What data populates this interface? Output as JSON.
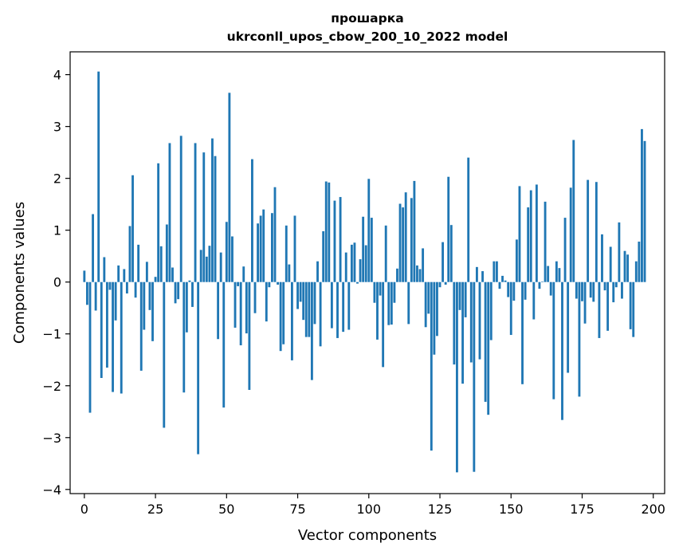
{
  "chart_data": {
    "type": "bar",
    "title_line1": "прошарка",
    "title_line2": "ukrconll_upos_cbow_200_10_2022 model",
    "xlabel": "Vector components",
    "ylabel": "Components values",
    "xlim": [
      -5,
      204
    ],
    "ylim": [
      -4.08,
      4.44
    ],
    "xticks": [
      0,
      25,
      50,
      75,
      100,
      125,
      150,
      175,
      200
    ],
    "yticks": [
      -4,
      -3,
      -2,
      -1,
      0,
      1,
      2,
      3,
      4
    ],
    "xtick_labels": [
      "0",
      "25",
      "50",
      "75",
      "100",
      "125",
      "150",
      "175",
      "200"
    ],
    "ytick_labels": [
      "−4",
      "−3",
      "−2",
      "−1",
      "0",
      "1",
      "2",
      "3",
      "4"
    ],
    "bar_color": "#1f77b4",
    "grid": false,
    "values": [
      0.22,
      -0.44,
      -2.52,
      1.31,
      -0.55,
      4.06,
      -1.85,
      0.48,
      -1.65,
      -0.15,
      -2.12,
      -0.74,
      0.32,
      -2.15,
      0.25,
      -0.22,
      1.08,
      2.06,
      -0.3,
      0.72,
      -1.71,
      -0.92,
      0.39,
      -0.54,
      -1.14,
      0.1,
      2.29,
      0.69,
      -2.81,
      1.11,
      2.68,
      0.28,
      -0.41,
      -0.33,
      2.82,
      -2.13,
      -0.97,
      0.03,
      -0.48,
      2.68,
      -3.32,
      0.62,
      2.5,
      0.49,
      0.7,
      2.77,
      2.43,
      -1.1,
      0.57,
      -2.42,
      1.16,
      3.65,
      0.88,
      -0.88,
      -0.08,
      -1.22,
      0.3,
      -0.99,
      -2.08,
      2.37,
      -0.6,
      1.13,
      1.28,
      1.4,
      -0.76,
      -0.1,
      1.33,
      1.83,
      -0.05,
      -1.33,
      -1.2,
      1.09,
      0.34,
      -1.51,
      1.28,
      -0.52,
      -0.38,
      -0.73,
      -1.06,
      -1.06,
      -1.89,
      -0.81,
      0.4,
      -1.24,
      0.98,
      1.94,
      1.92,
      -0.89,
      1.57,
      -1.08,
      1.64,
      -0.96,
      0.57,
      -0.92,
      0.72,
      0.76,
      -0.03,
      0.44,
      1.26,
      0.71,
      1.99,
      1.24,
      -0.4,
      -1.11,
      -0.26,
      -1.64,
      1.09,
      -0.83,
      -0.82,
      -0.4,
      0.26,
      1.51,
      1.44,
      1.73,
      -0.81,
      1.62,
      1.95,
      0.32,
      0.25,
      0.65,
      -0.87,
      -0.61,
      -3.25,
      -1.4,
      -1.04,
      -0.1,
      0.77,
      -0.05,
      2.03,
      1.1,
      -1.59,
      -3.67,
      -0.54,
      -1.96,
      -0.68,
      2.4,
      -1.55,
      -3.66,
      0.29,
      -1.49,
      0.21,
      -2.31,
      -2.56,
      -1.12,
      0.4,
      0.4,
      -0.13,
      0.12,
      0.03,
      -0.29,
      -1.02,
      -0.36,
      0.82,
      1.85,
      -1.97,
      -0.34,
      1.44,
      1.77,
      -0.72,
      1.88,
      -0.13,
      0.01,
      1.55,
      0.31,
      -0.26,
      -2.26,
      0.4,
      0.27,
      -2.66,
      1.24,
      -1.75,
      1.82,
      2.74,
      -0.32,
      -2.21,
      -0.37,
      -0.8,
      1.97,
      -0.3,
      -0.38,
      1.93,
      -1.08,
      0.92,
      -0.16,
      -0.94,
      0.68,
      -0.39,
      -0.1,
      1.15,
      -0.32,
      0.6,
      0.53,
      -0.91,
      -1.06,
      0.4,
      0.78,
      2.95,
      2.72
    ]
  }
}
